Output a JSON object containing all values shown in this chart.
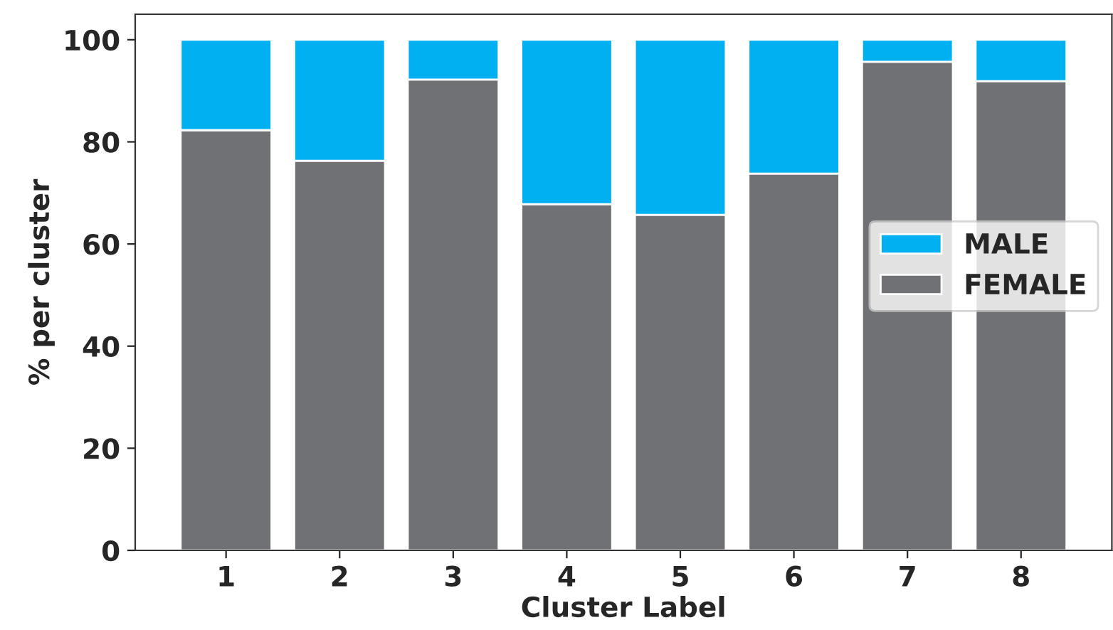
{
  "chart_data": {
    "type": "bar",
    "stacked": true,
    "xlabel": "Cluster Label",
    "ylabel": "% per cluster",
    "categories": [
      "1",
      "2",
      "3",
      "4",
      "5",
      "6",
      "7",
      "8"
    ],
    "series": [
      {
        "name": "FEMALE",
        "color": "#6f7175",
        "values": [
          82.3,
          76.3,
          92.2,
          67.8,
          65.7,
          73.8,
          95.7,
          91.9
        ]
      },
      {
        "name": "MALE",
        "color": "#00b0f0",
        "values": [
          17.7,
          23.7,
          7.8,
          32.2,
          34.3,
          26.2,
          4.3,
          8.1
        ]
      }
    ],
    "ylim": [
      0,
      105
    ],
    "yticks": [
      0,
      20,
      40,
      60,
      80,
      100
    ],
    "grid": false,
    "legend": "right"
  }
}
